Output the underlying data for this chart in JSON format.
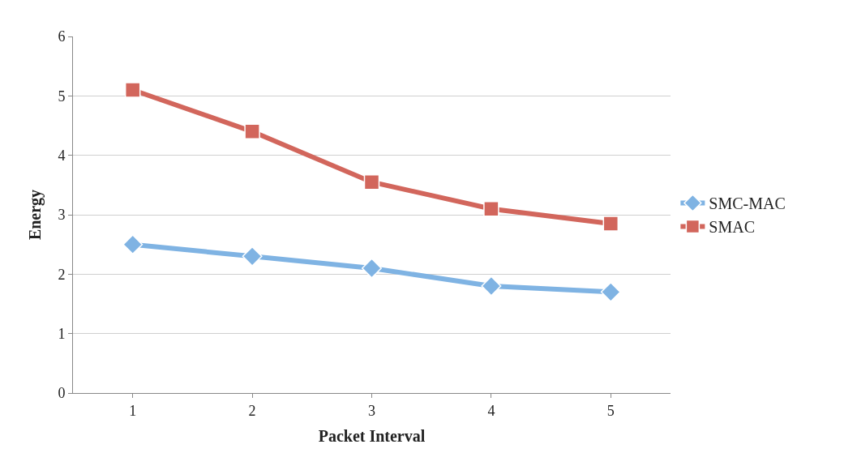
{
  "chart_data": {
    "type": "line",
    "xlabel": "Packet Interval",
    "ylabel": "Energy",
    "categories": [
      "1",
      "2",
      "3",
      "4",
      "5"
    ],
    "series": [
      {
        "name": "SMC-MAC",
        "color": "#7fb3e3",
        "marker": "diamond",
        "values": [
          2.5,
          2.3,
          2.1,
          1.8,
          1.7
        ]
      },
      {
        "name": "SMAC",
        "color": "#d2665c",
        "marker": "square",
        "values": [
          5.1,
          4.4,
          3.55,
          3.1,
          2.85
        ]
      }
    ],
    "ylim": [
      0,
      6
    ],
    "yticks": [
      0,
      1,
      2,
      3,
      4,
      5,
      6
    ],
    "grid": "y",
    "legend": "right",
    "line_style": "solid"
  }
}
